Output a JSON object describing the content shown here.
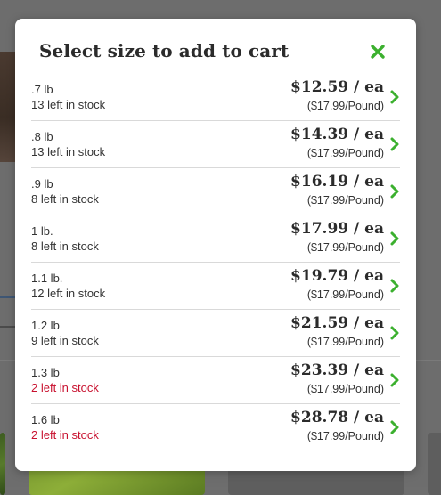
{
  "modal": {
    "title": "Select size to add to cart",
    "accent_color": "#3cb02f",
    "low_stock_color": "#c8102e",
    "close_icon": "close-x-icon"
  },
  "options": [
    {
      "size": ".7 lb",
      "stock": "13 left in stock",
      "low": false,
      "price": "$12.59 / ea",
      "unit_price": "($17.99/Pound)"
    },
    {
      "size": ".8 lb",
      "stock": "13 left in stock",
      "low": false,
      "price": "$14.39 / ea",
      "unit_price": "($17.99/Pound)"
    },
    {
      "size": ".9 lb",
      "stock": "8 left in stock",
      "low": false,
      "price": "$16.19 / ea",
      "unit_price": "($17.99/Pound)"
    },
    {
      "size": "1 lb.",
      "stock": "8 left in stock",
      "low": false,
      "price": "$17.99 / ea",
      "unit_price": "($17.99/Pound)"
    },
    {
      "size": "1.1 lb.",
      "stock": "12 left in stock",
      "low": false,
      "price": "$19.79 / ea",
      "unit_price": "($17.99/Pound)"
    },
    {
      "size": "1.2 lb",
      "stock": "9 left in stock",
      "low": false,
      "price": "$21.59 / ea",
      "unit_price": "($17.99/Pound)"
    },
    {
      "size": "1.3 lb",
      "stock": "2 left in stock",
      "low": true,
      "price": "$23.39 / ea",
      "unit_price": "($17.99/Pound)"
    },
    {
      "size": "1.6 lb",
      "stock": "2 left in stock",
      "low": true,
      "price": "$28.78 / ea",
      "unit_price": "($17.99/Pound)"
    }
  ]
}
